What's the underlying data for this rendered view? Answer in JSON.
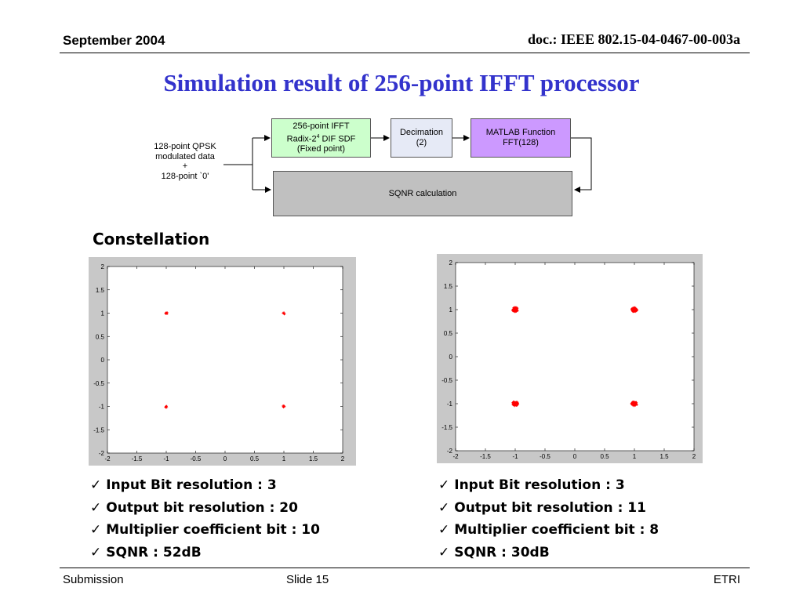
{
  "header": {
    "date": "September 2004",
    "doc": "doc.: IEEE 802.15-04-0467-00-003a"
  },
  "title": "Simulation result of 256-point IFFT processor",
  "diagram": {
    "input_lines": [
      "128-point QPSK",
      "modulated  data",
      "+",
      "128-point `0'"
    ],
    "ifft": {
      "line1": "256-point IFFT",
      "line2_pre": "Radix-2",
      "line2_sup": "4",
      "line2_post": " DIF SDF",
      "line3": "(Fixed point)",
      "color": "#ccffcc"
    },
    "decimation": {
      "line1": "Decimation",
      "line2": "(2)",
      "color": "#e6eaf6"
    },
    "matlab": {
      "line1": "MATLAB Function",
      "line2": "FFT(128)",
      "color": "#cc99ff"
    },
    "sqnr": {
      "label": "SQNR calculation",
      "color": "#c0c0c0"
    }
  },
  "constellation_title": "Constellation",
  "chart_data": [
    {
      "type": "scatter",
      "title": "",
      "xlim": [
        -2,
        2
      ],
      "ylim": [
        -2,
        2
      ],
      "xticks": [
        "-2",
        "-1.5",
        "-1",
        "-0.5",
        "0",
        "0.5",
        "1",
        "1.5",
        "2"
      ],
      "yticks": [
        "2",
        "1.5",
        "1",
        "0.5",
        "0",
        "-0.5",
        "-1",
        "-1.5",
        "-2"
      ],
      "marker_color": "#ff0000",
      "spread": 0.012,
      "points": [
        [
          -1,
          1
        ],
        [
          1,
          1
        ],
        [
          -1,
          -1
        ],
        [
          1,
          -1
        ]
      ]
    },
    {
      "type": "scatter",
      "title": "",
      "xlim": [
        -2,
        2
      ],
      "ylim": [
        -2,
        2
      ],
      "xticks": [
        "-2",
        "-1.5",
        "-1",
        "-0.5",
        "0",
        "0.5",
        "1",
        "1.5",
        "2"
      ],
      "yticks": [
        "2",
        "1.5",
        "1",
        "0.5",
        "0",
        "-0.5",
        "-1",
        "-1.5",
        "-2"
      ],
      "marker_color": "#ff0000",
      "spread": 0.05,
      "points": [
        [
          -1,
          1
        ],
        [
          1,
          1
        ],
        [
          -1,
          -1
        ],
        [
          1,
          -1
        ]
      ]
    }
  ],
  "results_left": [
    "Input Bit resolution : 3",
    "Output bit resolution : 20",
    "Multiplier coefficient bit : 10",
    "SQNR : 52dB"
  ],
  "results_right": [
    "Input Bit resolution : 3",
    "Output bit resolution : 11",
    "Multiplier coefficient bit : 8",
    "SQNR : 30dB"
  ],
  "checkmark": "✓",
  "footer": {
    "left": "Submission",
    "middle": "Slide 15",
    "right": "ETRI"
  }
}
